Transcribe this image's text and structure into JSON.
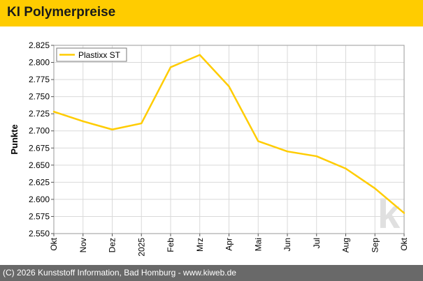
{
  "header": {
    "title": "KI Polymerpreise"
  },
  "footer": {
    "text": "(C) 2026 Kunststoff Information, Bad Homburg - www.kiweb.de"
  },
  "watermark": {
    "text": "k"
  },
  "colors": {
    "header_bg": "#ffcc00",
    "footer_bg": "#696969",
    "line": "#ffcc00",
    "grid": "#d9d9d9",
    "watermark": "#e0e0e0"
  },
  "chart_data": {
    "type": "line",
    "title": "",
    "xlabel": "",
    "ylabel": "Punkte",
    "categories": [
      "Okt",
      "Nov",
      "Dez",
      "2025",
      "Feb",
      "Mrz",
      "Apr",
      "Mai",
      "Jun",
      "Jul",
      "Aug",
      "Sep",
      "Okt"
    ],
    "series": [
      {
        "name": "Plastixx ST",
        "values": [
          2.728,
          2.714,
          2.702,
          2.711,
          2.793,
          2.811,
          2.765,
          2.685,
          2.67,
          2.663,
          2.645,
          2.616,
          2.58
        ]
      }
    ],
    "ylim": [
      2.55,
      2.825
    ],
    "yticks": [
      "2.825",
      "2.800",
      "2.775",
      "2.750",
      "2.725",
      "2.700",
      "2.675",
      "2.650",
      "2.625",
      "2.600",
      "2.575",
      "2.550"
    ],
    "grid": true,
    "legend_position": "top-left"
  }
}
